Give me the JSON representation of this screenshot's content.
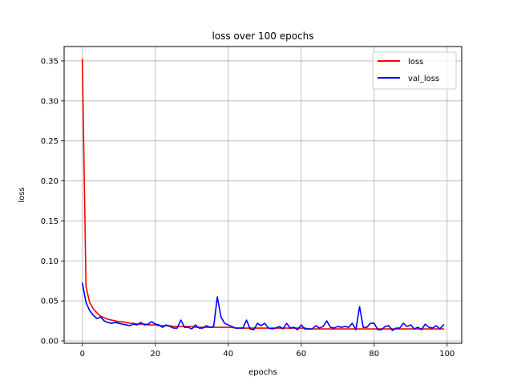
{
  "chart_data": {
    "type": "line",
    "title": "loss over 100 epochs",
    "xlabel": "epochs",
    "ylabel": "loss",
    "xlim": [
      -5,
      104
    ],
    "ylim": [
      -0.003,
      0.368
    ],
    "xticks": [
      0,
      20,
      40,
      60,
      80,
      100
    ],
    "yticks": [
      0.0,
      0.05,
      0.1,
      0.15,
      0.2,
      0.25,
      0.3,
      0.35
    ],
    "ytick_labels": [
      "0.00",
      "0.05",
      "0.10",
      "0.15",
      "0.20",
      "0.25",
      "0.30",
      "0.35"
    ],
    "grid": true,
    "legend_position": "upper right",
    "series": [
      {
        "name": "loss",
        "color": "#ff0000",
        "x": [
          0,
          1,
          2,
          3,
          4,
          5,
          6,
          7,
          8,
          9,
          10,
          11,
          12,
          13,
          14,
          15,
          16,
          17,
          18,
          19,
          20,
          21,
          22,
          23,
          24,
          25,
          26,
          27,
          28,
          29,
          30,
          31,
          32,
          33,
          34,
          35,
          36,
          37,
          38,
          39,
          40,
          41,
          42,
          43,
          44,
          45,
          46,
          47,
          48,
          49,
          50,
          51,
          52,
          53,
          54,
          55,
          56,
          57,
          58,
          59,
          60,
          61,
          62,
          63,
          64,
          65,
          66,
          67,
          68,
          69,
          70,
          71,
          72,
          73,
          74,
          75,
          76,
          77,
          78,
          79,
          80,
          81,
          82,
          83,
          84,
          85,
          86,
          87,
          88,
          89,
          90,
          91,
          92,
          93,
          94,
          95,
          96,
          97,
          98,
          99
        ],
        "values": [
          0.352,
          0.068,
          0.048,
          0.04,
          0.035,
          0.031,
          0.029,
          0.027,
          0.026,
          0.025,
          0.024,
          0.024,
          0.023,
          0.022,
          0.022,
          0.021,
          0.021,
          0.021,
          0.02,
          0.02,
          0.02,
          0.019,
          0.019,
          0.019,
          0.019,
          0.018,
          0.018,
          0.018,
          0.018,
          0.018,
          0.018,
          0.017,
          0.017,
          0.017,
          0.017,
          0.017,
          0.017,
          0.017,
          0.017,
          0.017,
          0.017,
          0.017,
          0.016,
          0.016,
          0.016,
          0.016,
          0.016,
          0.016,
          0.016,
          0.016,
          0.016,
          0.016,
          0.016,
          0.016,
          0.016,
          0.016,
          0.016,
          0.016,
          0.016,
          0.016,
          0.016,
          0.016,
          0.015,
          0.015,
          0.015,
          0.015,
          0.015,
          0.015,
          0.015,
          0.015,
          0.015,
          0.015,
          0.015,
          0.015,
          0.015,
          0.015,
          0.015,
          0.015,
          0.015,
          0.015,
          0.015,
          0.015,
          0.015,
          0.015,
          0.015,
          0.015,
          0.015,
          0.015,
          0.015,
          0.015,
          0.015,
          0.015,
          0.015,
          0.015,
          0.015,
          0.015,
          0.015,
          0.015,
          0.015,
          0.015
        ]
      },
      {
        "name": "val_loss",
        "color": "#0000ff",
        "x": [
          0,
          1,
          2,
          3,
          4,
          5,
          6,
          7,
          8,
          9,
          10,
          11,
          12,
          13,
          14,
          15,
          16,
          17,
          18,
          19,
          20,
          21,
          22,
          23,
          24,
          25,
          26,
          27,
          28,
          29,
          30,
          31,
          32,
          33,
          34,
          35,
          36,
          37,
          38,
          39,
          40,
          41,
          42,
          43,
          44,
          45,
          46,
          47,
          48,
          49,
          50,
          51,
          52,
          53,
          54,
          55,
          56,
          57,
          58,
          59,
          60,
          61,
          62,
          63,
          64,
          65,
          66,
          67,
          68,
          69,
          70,
          71,
          72,
          73,
          74,
          75,
          76,
          77,
          78,
          79,
          80,
          81,
          82,
          83,
          84,
          85,
          86,
          87,
          88,
          89,
          90,
          91,
          92,
          93,
          94,
          95,
          96,
          97,
          98,
          99
        ],
        "values": [
          0.072,
          0.048,
          0.038,
          0.032,
          0.028,
          0.03,
          0.025,
          0.023,
          0.022,
          0.023,
          0.022,
          0.021,
          0.02,
          0.019,
          0.021,
          0.02,
          0.023,
          0.02,
          0.021,
          0.024,
          0.021,
          0.02,
          0.017,
          0.02,
          0.018,
          0.016,
          0.016,
          0.026,
          0.017,
          0.017,
          0.015,
          0.02,
          0.016,
          0.016,
          0.019,
          0.017,
          0.018,
          0.055,
          0.03,
          0.022,
          0.02,
          0.018,
          0.016,
          0.016,
          0.016,
          0.026,
          0.015,
          0.014,
          0.022,
          0.019,
          0.022,
          0.016,
          0.015,
          0.016,
          0.018,
          0.015,
          0.022,
          0.016,
          0.017,
          0.014,
          0.02,
          0.015,
          0.015,
          0.015,
          0.019,
          0.016,
          0.018,
          0.025,
          0.017,
          0.016,
          0.018,
          0.017,
          0.018,
          0.017,
          0.022,
          0.014,
          0.043,
          0.017,
          0.017,
          0.022,
          0.022,
          0.014,
          0.014,
          0.018,
          0.019,
          0.013,
          0.016,
          0.016,
          0.022,
          0.018,
          0.02,
          0.015,
          0.017,
          0.014,
          0.021,
          0.017,
          0.016,
          0.019,
          0.015,
          0.02
        ]
      }
    ]
  }
}
